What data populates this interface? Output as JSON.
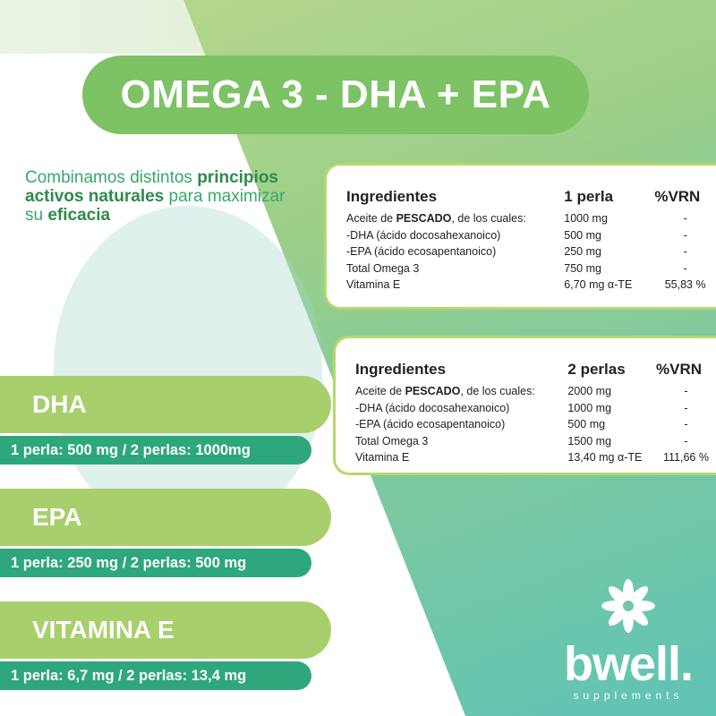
{
  "title": "OMEGA 3 - DHA + EPA",
  "intro": {
    "p1": "Combinamos distintos ",
    "b1": "principios activos naturales",
    "p2": " para maximizar su ",
    "b2": "eficacia"
  },
  "tables": [
    {
      "headers": [
        "Ingredientes",
        "1 perla",
        "%VRN"
      ],
      "rows": [
        {
          "pre": "Aceite de ",
          "bold": "PESCADO",
          "post": ", de los cuales:",
          "amount": "1000 mg",
          "vrn": "-"
        },
        {
          "pre": "-DHA (ácido docosahexanoico)",
          "bold": "",
          "post": "",
          "amount": "500 mg",
          "vrn": "-"
        },
        {
          "pre": "-EPA (ácido ecosapentanoico)",
          "bold": "",
          "post": "",
          "amount": "250 mg",
          "vrn": "-"
        },
        {
          "pre": "Total Omega 3",
          "bold": "",
          "post": "",
          "amount": "750 mg",
          "vrn": "-"
        },
        {
          "pre": "Vitamina E",
          "bold": "",
          "post": "",
          "amount": "6,70 mg α-TE",
          "vrn": "55,83 %"
        }
      ]
    },
    {
      "headers": [
        "Ingredientes",
        "2 perlas",
        "%VRN"
      ],
      "rows": [
        {
          "pre": "Aceite de ",
          "bold": "PESCADO",
          "post": ", de los cuales:",
          "amount": "2000 mg",
          "vrn": "-"
        },
        {
          "pre": "-DHA (ácido docosahexanoico)",
          "bold": "",
          "post": "",
          "amount": "1000 mg",
          "vrn": "-"
        },
        {
          "pre": "-EPA (ácido ecosapentanoico)",
          "bold": "",
          "post": "",
          "amount": "500 mg",
          "vrn": "-"
        },
        {
          "pre": "Total Omega 3",
          "bold": "",
          "post": "",
          "amount": "1500 mg",
          "vrn": "-"
        },
        {
          "pre": "Vitamina E",
          "bold": "",
          "post": "",
          "amount": "13,40 mg α-TE",
          "vrn": "111,66 %"
        }
      ]
    }
  ],
  "nutrients": [
    {
      "name": "DHA",
      "dose": "1 perla: 500 mg / 2 perlas: 1000mg"
    },
    {
      "name": "EPA",
      "dose": "1 perla: 250 mg / 2 perlas: 500 mg"
    },
    {
      "name": "VITAMINA E",
      "dose": "1 perla: 6,7 mg / 2 perlas: 13,4 mg"
    }
  ],
  "logo": {
    "word": "bwell.",
    "tagline": "supplements",
    "icon": "flower-icon"
  },
  "colors": {
    "title_pill": "#7dc265",
    "nutrient_pill": "#a7cf6c",
    "dose_bar": "#2ea77c",
    "text_green": "#3aa76a"
  }
}
